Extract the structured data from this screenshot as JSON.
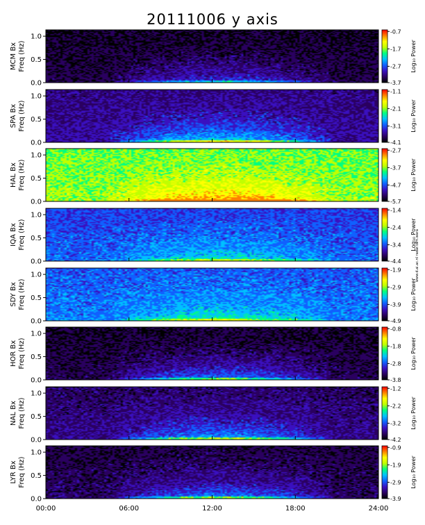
{
  "chart_data": {
    "type": "heatmap",
    "title": "20111006 y axis",
    "xlabel": "",
    "x_ticks": [
      "00:00",
      "06:00",
      "12:00",
      "18:00",
      "24:00"
    ],
    "xlim_hours": [
      0,
      24
    ],
    "ylim_hz": [
      0,
      1.1
    ],
    "y_ticks": [
      0.0,
      0.5,
      1.0
    ],
    "y_tick_labels": [
      "0.0",
      "0.5",
      "1.0"
    ],
    "colorbar_label": "Log₁₀ Power",
    "colormap": [
      "#000000",
      "#2a0060",
      "#3a10c0",
      "#1060ff",
      "#00c0ff",
      "#00ff80",
      "#c0ff00",
      "#ffff00",
      "#ff8000",
      "#ff0000"
    ],
    "side_note": "www.d.ai.ac.nl radar.tam.wara",
    "panels": [
      {
        "station": "MCM",
        "label": "MCM Bx",
        "ylabel": "Freq (Hz)",
        "cbar_ticks": [
          "-0.7",
          "-1.7",
          "-2.7",
          "-3.7"
        ],
        "base": 0.05,
        "event": 0.22
      },
      {
        "station": "SPA",
        "label": "SPA Bx",
        "ylabel": "Freq (Hz)",
        "cbar_ticks": [
          "-1.1",
          "-2.1",
          "-3.1",
          "-4.1"
        ],
        "base": 0.15,
        "event": 0.35
      },
      {
        "station": "HAL",
        "label": "HAL Bx",
        "ylabel": "Freq (Hz)",
        "cbar_ticks": [
          "-2.7",
          "-3.7",
          "-4.7",
          "-5.7"
        ],
        "base": 0.62,
        "event": 0.25
      },
      {
        "station": "IQA",
        "label": "IQA Bx",
        "ylabel": "Freq (Hz)",
        "cbar_ticks": [
          "-1.4",
          "-2.4",
          "-3.4",
          "-4.4"
        ],
        "base": 0.3,
        "event": 0.2
      },
      {
        "station": "SDY",
        "label": "SDY Bx",
        "ylabel": "Freq (Hz)",
        "cbar_ticks": [
          "-1.9",
          "-2.9",
          "-3.9",
          "-4.9"
        ],
        "base": 0.33,
        "event": 0.2
      },
      {
        "station": "HOR",
        "label": "HOR Bx",
        "ylabel": "Freq (Hz)",
        "cbar_ticks": [
          "-0.8",
          "-1.8",
          "-2.8",
          "-3.8"
        ],
        "base": 0.06,
        "event": 0.3
      },
      {
        "station": "NAL",
        "label": "NAL Bx",
        "ylabel": "Freq (Hz)",
        "cbar_ticks": [
          "-1.2",
          "-2.2",
          "-3.2",
          "-4.2"
        ],
        "base": 0.12,
        "event": 0.3
      },
      {
        "station": "LYR",
        "label": "LYR Bx",
        "ylabel": "Freq (Hz)",
        "cbar_ticks": [
          "-0.9",
          "-1.9",
          "-2.9",
          "-3.9"
        ],
        "base": 0.08,
        "event": 0.3
      }
    ]
  }
}
